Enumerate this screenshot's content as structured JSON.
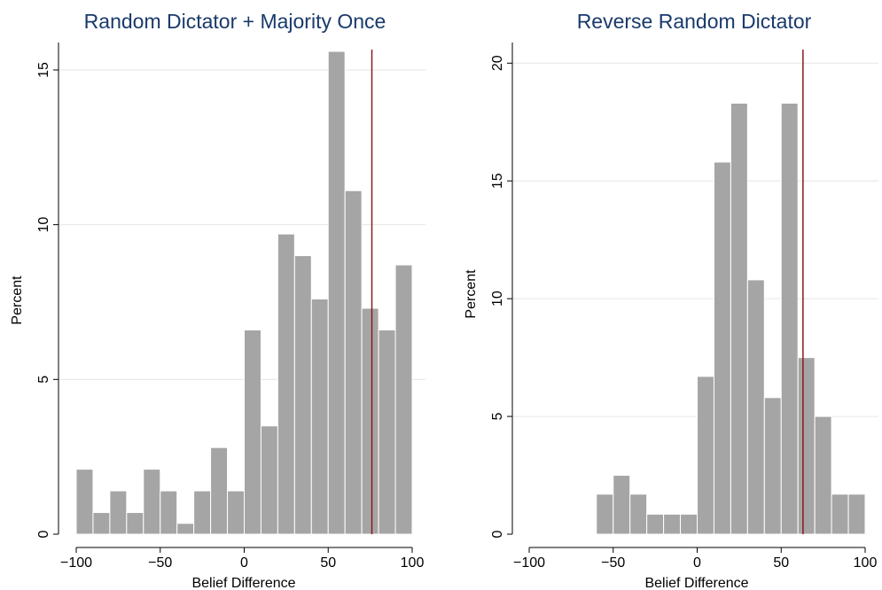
{
  "chart_data": [
    {
      "type": "bar",
      "title": "Random Dictator + Majority Once",
      "xlabel": "Belief Difference",
      "ylabel": "Percent",
      "xlim": [
        -100,
        100
      ],
      "ylim": [
        0,
        15.6
      ],
      "xticks": [
        -100,
        -50,
        0,
        50,
        100
      ],
      "yticks": [
        0,
        5,
        10,
        15
      ],
      "grid": true,
      "bin_width": 10,
      "bins": [
        {
          "x0": -100,
          "value": 2.1
        },
        {
          "x0": -90,
          "value": 0.7
        },
        {
          "x0": -80,
          "value": 1.4
        },
        {
          "x0": -70,
          "value": 0.7
        },
        {
          "x0": -60,
          "value": 2.1
        },
        {
          "x0": -50,
          "value": 1.4
        },
        {
          "x0": -40,
          "value": 0.35
        },
        {
          "x0": -30,
          "value": 1.4
        },
        {
          "x0": -20,
          "value": 2.8
        },
        {
          "x0": -10,
          "value": 1.4
        },
        {
          "x0": 0,
          "value": 6.6
        },
        {
          "x0": 10,
          "value": 3.5
        },
        {
          "x0": 20,
          "value": 9.7
        },
        {
          "x0": 30,
          "value": 9.0
        },
        {
          "x0": 40,
          "value": 7.6
        },
        {
          "x0": 50,
          "value": 15.6
        },
        {
          "x0": 60,
          "value": 11.1
        },
        {
          "x0": 70,
          "value": 7.3
        },
        {
          "x0": 80,
          "value": 6.6
        },
        {
          "x0": 90,
          "value": 8.7
        }
      ],
      "reference_line_x": 76,
      "reference_line_color": "#8b1a1a",
      "bar_color": "#a5a5a5"
    },
    {
      "type": "bar",
      "title": "Reverse Random Dictator",
      "xlabel": "Belief Difference",
      "ylabel": "Percent",
      "xlim": [
        -100,
        100
      ],
      "ylim": [
        0,
        20.5
      ],
      "xticks": [
        -100,
        -50,
        0,
        50,
        100
      ],
      "yticks": [
        0,
        5,
        10,
        15,
        20
      ],
      "grid": true,
      "bin_width": 10,
      "bins": [
        {
          "x0": -60,
          "value": 1.7
        },
        {
          "x0": -50,
          "value": 2.5
        },
        {
          "x0": -40,
          "value": 1.7
        },
        {
          "x0": -30,
          "value": 0.85
        },
        {
          "x0": -20,
          "value": 0.85
        },
        {
          "x0": -10,
          "value": 0.85
        },
        {
          "x0": 0,
          "value": 6.7
        },
        {
          "x0": 10,
          "value": 15.8
        },
        {
          "x0": 20,
          "value": 18.3
        },
        {
          "x0": 30,
          "value": 10.8
        },
        {
          "x0": 40,
          "value": 5.8
        },
        {
          "x0": 50,
          "value": 18.3
        },
        {
          "x0": 60,
          "value": 7.5
        },
        {
          "x0": 70,
          "value": 5.0
        },
        {
          "x0": 80,
          "value": 1.7
        },
        {
          "x0": 90,
          "value": 1.7
        }
      ],
      "reference_line_x": 63,
      "reference_line_color": "#8b1a1a",
      "bar_color": "#a5a5a5"
    }
  ]
}
